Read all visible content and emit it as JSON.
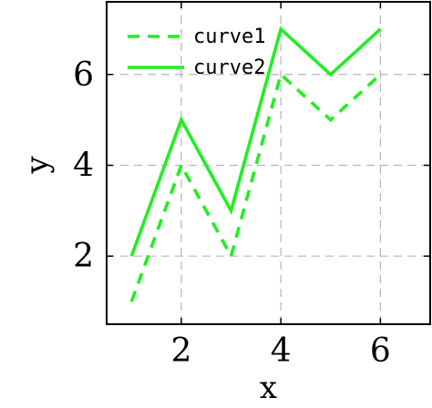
{
  "chart_data": {
    "type": "line",
    "title": "",
    "xlabel": "x",
    "ylabel": "y",
    "xlim": [
      0.5,
      7.0
    ],
    "ylim": [
      0.5,
      7.6
    ],
    "xticks": [
      2,
      4,
      6
    ],
    "yticks": [
      2,
      4,
      6
    ],
    "grid": true,
    "legend_position": "top-left",
    "series": [
      {
        "name": "curve1",
        "style": "dashed",
        "color": "#22ee22",
        "x": [
          1,
          2,
          3,
          4,
          5,
          6
        ],
        "y": [
          1,
          4,
          2,
          6,
          5,
          6
        ]
      },
      {
        "name": "curve2",
        "style": "solid",
        "color": "#22ee22",
        "x": [
          1,
          2,
          3,
          4,
          5,
          6
        ],
        "y": [
          2,
          5,
          3,
          7,
          6,
          7
        ]
      }
    ]
  }
}
